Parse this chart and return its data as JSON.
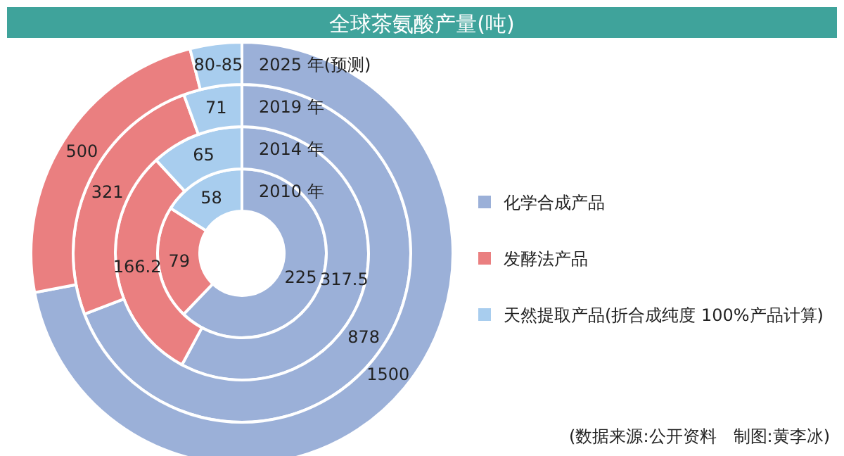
{
  "chart_data": {
    "type": "donut",
    "title": "全球茶氨酸产量(吨)",
    "categories": [
      "化学合成产品",
      "发酵法产品",
      "天然提取产品(折合成纯度 100%产品计算)"
    ],
    "colors": [
      "#9bb0d8",
      "#ea7f80",
      "#a8cdee"
    ],
    "series": [
      {
        "name": "2010 年",
        "values": [
          225,
          79,
          58
        ],
        "value_labels": [
          "225",
          "79",
          "58"
        ]
      },
      {
        "name": "2014 年",
        "values": [
          317.5,
          166.2,
          65
        ],
        "value_labels": [
          "317.5",
          "166.2",
          "65"
        ]
      },
      {
        "name": "2019 年",
        "values": [
          878,
          321,
          71
        ],
        "value_labels": [
          "878",
          "321",
          "71"
        ]
      },
      {
        "name": "2025 年(预测)",
        "values": [
          1500,
          500,
          82.5
        ],
        "value_labels": [
          "1500",
          "500",
          "80-85"
        ]
      }
    ],
    "legend": "right",
    "annotations": [
      "(数据来源:公开资料　制图:黄李冰)"
    ]
  }
}
